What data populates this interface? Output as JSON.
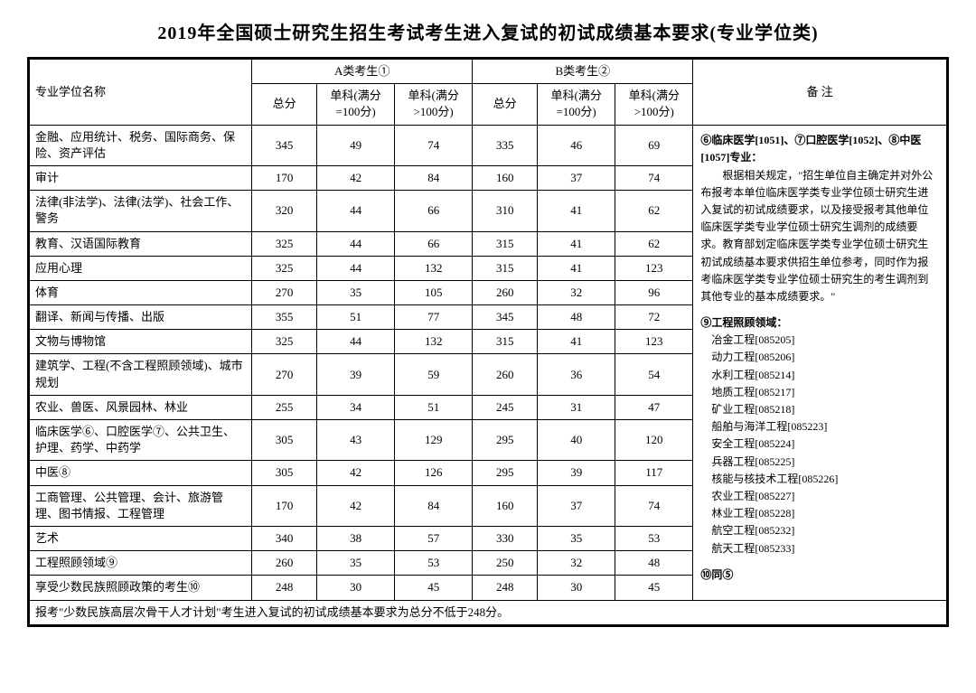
{
  "title": "2019年全国硕士研究生招生考试考生进入复试的初试成绩基本要求(专业学位类)",
  "header": {
    "degree_name": "专业学位名称",
    "groupA": "A类考生①",
    "groupB": "B类考生②",
    "remarks": "备 注",
    "total": "总分",
    "single100": "单科(满分=100分)",
    "single_over100": "单科(满分>100分)"
  },
  "rows": [
    {
      "name": "金融、应用统计、税务、国际商务、保险、资产评估",
      "a_total": "345",
      "a_s100": "49",
      "a_g100": "74",
      "b_total": "335",
      "b_s100": "46",
      "b_g100": "69"
    },
    {
      "name": "审计",
      "a_total": "170",
      "a_s100": "42",
      "a_g100": "84",
      "b_total": "160",
      "b_s100": "37",
      "b_g100": "74"
    },
    {
      "name": "法律(非法学)、法律(法学)、社会工作、警务",
      "a_total": "320",
      "a_s100": "44",
      "a_g100": "66",
      "b_total": "310",
      "b_s100": "41",
      "b_g100": "62"
    },
    {
      "name": "教育、汉语国际教育",
      "a_total": "325",
      "a_s100": "44",
      "a_g100": "66",
      "b_total": "315",
      "b_s100": "41",
      "b_g100": "62"
    },
    {
      "name": "应用心理",
      "a_total": "325",
      "a_s100": "44",
      "a_g100": "132",
      "b_total": "315",
      "b_s100": "41",
      "b_g100": "123"
    },
    {
      "name": "体育",
      "a_total": "270",
      "a_s100": "35",
      "a_g100": "105",
      "b_total": "260",
      "b_s100": "32",
      "b_g100": "96"
    },
    {
      "name": "翻译、新闻与传播、出版",
      "a_total": "355",
      "a_s100": "51",
      "a_g100": "77",
      "b_total": "345",
      "b_s100": "48",
      "b_g100": "72"
    },
    {
      "name": "文物与博物馆",
      "a_total": "325",
      "a_s100": "44",
      "a_g100": "132",
      "b_total": "315",
      "b_s100": "41",
      "b_g100": "123"
    },
    {
      "name": "建筑学、工程(不含工程照顾领域)、城市规划",
      "a_total": "270",
      "a_s100": "39",
      "a_g100": "59",
      "b_total": "260",
      "b_s100": "36",
      "b_g100": "54"
    },
    {
      "name": "农业、兽医、风景园林、林业",
      "a_total": "255",
      "a_s100": "34",
      "a_g100": "51",
      "b_total": "245",
      "b_s100": "31",
      "b_g100": "47"
    },
    {
      "name": "临床医学⑥、口腔医学⑦、公共卫生、护理、药学、中药学",
      "a_total": "305",
      "a_s100": "43",
      "a_g100": "129",
      "b_total": "295",
      "b_s100": "40",
      "b_g100": "120"
    },
    {
      "name": "中医⑧",
      "a_total": "305",
      "a_s100": "42",
      "a_g100": "126",
      "b_total": "295",
      "b_s100": "39",
      "b_g100": "117"
    },
    {
      "name": "工商管理、公共管理、会计、旅游管理、图书情报、工程管理",
      "a_total": "170",
      "a_s100": "42",
      "a_g100": "84",
      "b_total": "160",
      "b_s100": "37",
      "b_g100": "74"
    },
    {
      "name": "艺术",
      "a_total": "340",
      "a_s100": "38",
      "a_g100": "57",
      "b_total": "330",
      "b_s100": "35",
      "b_g100": "53"
    },
    {
      "name": "工程照顾领域⑨",
      "a_total": "260",
      "a_s100": "35",
      "a_g100": "53",
      "b_total": "250",
      "b_s100": "32",
      "b_g100": "48"
    },
    {
      "name": "享受少数民族照顾政策的考生⑩",
      "a_total": "248",
      "a_s100": "30",
      "a_g100": "45",
      "b_total": "248",
      "b_s100": "30",
      "b_g100": "45"
    }
  ],
  "footnote": "报考\"少数民族高层次骨干人才计划\"考生进入复试的初试成绩基本要求为总分不低于248分。",
  "remarks": {
    "block1_title": "⑥临床医学[1051]、⑦口腔医学[1052]、⑧中医[1057]专业：",
    "block1_body": "　　根据相关规定，\"招生单位自主确定并对外公布报考本单位临床医学类专业学位硕士研究生进入复试的初试成绩要求，以及接受报考其他单位临床医学类专业学位硕士研究生调剂的成绩要求。教育部划定临床医学类专业学位硕士研究生初试成绩基本要求供招生单位参考，同时作为报考临床医学类专业学位硕士研究生的考生调剂到其他专业的基本成绩要求。\"",
    "block2_title": "⑨工程照顾领域：",
    "block2_lines": [
      "冶金工程[085205]",
      "动力工程[085206]",
      "水利工程[085214]",
      "地质工程[085217]",
      "矿业工程[085218]",
      "船舶与海洋工程[085223]",
      "安全工程[085224]",
      "兵器工程[085225]",
      "核能与核技术工程[085226]",
      "农业工程[085227]",
      "林业工程[085228]",
      "航空工程[085232]",
      "航天工程[085233]"
    ],
    "block3": "⑩同⑤"
  }
}
